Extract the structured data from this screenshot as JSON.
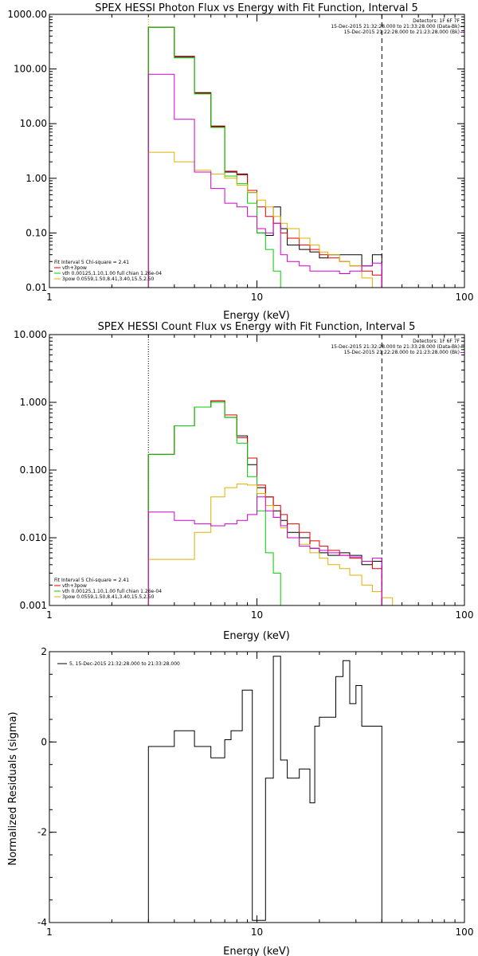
{
  "chart_data": [
    {
      "type": "line",
      "title": "SPEX HESSI Photon Flux vs Energy with Fit Function, Interval 5",
      "xlabel": "Energy (keV)",
      "ylabel": "",
      "xscale": "log",
      "yscale": "log",
      "xlim": [
        1,
        100
      ],
      "ylim": [
        0.01,
        1000
      ],
      "xticks": [
        {
          "v": 1,
          "label": "1"
        },
        {
          "v": 10,
          "label": "10"
        },
        {
          "v": 100,
          "label": "100"
        }
      ],
      "yticks": [
        {
          "v": 0.01,
          "label": "0.01"
        },
        {
          "v": 0.1,
          "label": "0.10"
        },
        {
          "v": 1,
          "label": "1.00"
        },
        {
          "v": 10,
          "label": "10.00"
        },
        {
          "v": 100,
          "label": "100.00"
        },
        {
          "v": 1000,
          "label": "1000.00"
        }
      ],
      "info_lines": [
        "Detectors: 1F 6F 7F",
        "15-Dec-2015 21:32:28.000 to 21:33:28.000 (Data-Bk)",
        "15-Dec-2015 21:22:28.000 to 21:23:28.000 (Bk)"
      ],
      "legend_lines": [
        {
          "text": "Fit Interval 5   Chi-square = 2.41",
          "color": null
        },
        {
          "text": "vth+3pow",
          "color": "#e00000"
        },
        {
          "text": "vth 0.00125,1.10,1.00  full chian 1.26e-04",
          "color": "#00d000"
        },
        {
          "text": "3pow 0.0559,1.50,8.41,3.40,15.5,2.50",
          "color": "#e0b000"
        }
      ],
      "series": [
        {
          "color": "#000000",
          "edges": [
            3,
            3.5,
            4,
            5,
            6,
            7,
            8,
            9,
            10,
            11,
            12,
            13,
            14,
            16,
            18,
            20,
            22,
            25,
            28,
            32,
            36,
            40
          ],
          "values": [
            580,
            580,
            170,
            37,
            9,
            1.3,
            1.2,
            0.55,
            0.1,
            0.09,
            0.3,
            0.12,
            0.06,
            0.05,
            0.045,
            0.035,
            0.04,
            0.04,
            0.04,
            0.025,
            0.04
          ]
        },
        {
          "color": "#e00000",
          "edges": [
            3,
            3.5,
            4,
            5,
            6,
            7,
            8,
            9,
            10,
            11,
            12,
            13,
            14,
            16,
            18,
            20,
            22,
            25,
            28,
            32,
            36,
            40
          ],
          "values": [
            580,
            580,
            165,
            36,
            8.8,
            1.35,
            1.15,
            0.6,
            0.3,
            0.2,
            0.15,
            0.1,
            0.08,
            0.06,
            0.05,
            0.04,
            0.035,
            0.03,
            0.025,
            0.02,
            0.017
          ]
        },
        {
          "color": "#00d000",
          "edges": [
            3,
            3.5,
            4,
            5,
            6,
            7,
            8,
            9,
            10,
            11,
            12,
            13,
            14
          ],
          "values": [
            580,
            580,
            160,
            35,
            8.5,
            1.1,
            0.8,
            0.35,
            0.1,
            0.05,
            0.02,
            0.01
          ]
        },
        {
          "color": "#e0b000",
          "edges": [
            3,
            3.5,
            4,
            5,
            6,
            7,
            8,
            9,
            10,
            11,
            12,
            13,
            14,
            16,
            18,
            20,
            22,
            25,
            28,
            32,
            36,
            40
          ],
          "values": [
            3,
            3,
            2,
            1.4,
            1.2,
            1,
            0.75,
            0.55,
            0.4,
            0.3,
            0.2,
            0.15,
            0.12,
            0.08,
            0.06,
            0.045,
            0.04,
            0.03,
            0.025,
            0.015,
            0.01
          ]
        },
        {
          "color": "#d000d0",
          "edges": [
            3,
            3.5,
            4,
            5,
            6,
            7,
            8,
            9,
            10,
            11,
            12,
            13,
            14,
            16,
            18,
            20,
            22,
            25,
            28,
            32,
            36,
            40
          ],
          "values": [
            80,
            80,
            12,
            1.3,
            0.65,
            0.35,
            0.3,
            0.2,
            0.12,
            0.1,
            0.15,
            0.04,
            0.03,
            0.025,
            0.02,
            0.02,
            0.02,
            0.018,
            0.02,
            0.025,
            0.028
          ]
        }
      ],
      "vlines": [
        {
          "x": 3,
          "style": "dotted",
          "color": "#d0a000"
        },
        {
          "x": 40,
          "style": "dashed",
          "color": "#000000"
        }
      ]
    },
    {
      "type": "line",
      "title": "SPEX HESSI Count Flux vs Energy with Fit Function, Interval 5",
      "xlabel": "Energy (keV)",
      "ylabel": "",
      "xscale": "log",
      "yscale": "log",
      "xlim": [
        1,
        100
      ],
      "ylim": [
        0.001,
        10
      ],
      "xticks": [
        {
          "v": 1,
          "label": "1"
        },
        {
          "v": 10,
          "label": "10"
        },
        {
          "v": 100,
          "label": "100"
        }
      ],
      "yticks": [
        {
          "v": 0.001,
          "label": "0.001"
        },
        {
          "v": 0.01,
          "label": "0.010"
        },
        {
          "v": 0.1,
          "label": "0.100"
        },
        {
          "v": 1,
          "label": "1.000"
        },
        {
          "v": 10,
          "label": "10.000"
        }
      ],
      "info_lines": [
        "Detectors: 1F 6F 7F",
        "15-Dec-2015 21:32:28.000 to 21:33:28.000 (Data-Bk)",
        "15-Dec-2015 21:22:28.000 to 21:23:28.000 (Bk)"
      ],
      "legend_lines": [
        {
          "text": "Fit Interval 5   Chi-square = 2.41",
          "color": null
        },
        {
          "text": "vth+3pow",
          "color": "#e00000"
        },
        {
          "text": "vth 0.00125,1.10,1.00  full chian 1.26e-04",
          "color": "#00d000"
        },
        {
          "text": "3pow 0.0559,1.50,8.41,3.40,15.5,2.50",
          "color": "#e0b000"
        }
      ],
      "series": [
        {
          "color": "#000000",
          "edges": [
            3,
            4,
            5,
            6,
            7,
            8,
            9,
            10,
            11,
            12,
            13,
            14,
            16,
            18,
            20,
            22,
            25,
            28,
            32,
            36,
            40
          ],
          "values": [
            0.17,
            0.45,
            0.85,
            1.05,
            0.6,
            0.32,
            0.12,
            0.055,
            0.04,
            0.025,
            0.018,
            0.012,
            0.01,
            0.007,
            0.006,
            0.0055,
            0.006,
            0.0055,
            0.004,
            0.0045
          ]
        },
        {
          "color": "#e00000",
          "edges": [
            3,
            4,
            5,
            6,
            7,
            8,
            9,
            10,
            11,
            12,
            13,
            14,
            16,
            18,
            20,
            22,
            25,
            28,
            32,
            36,
            40
          ],
          "values": [
            0.17,
            0.45,
            0.85,
            1.05,
            0.65,
            0.3,
            0.15,
            0.06,
            0.04,
            0.03,
            0.022,
            0.016,
            0.012,
            0.009,
            0.0075,
            0.0065,
            0.0055,
            0.005,
            0.0045,
            0.0035
          ]
        },
        {
          "color": "#00d000",
          "edges": [
            3,
            4,
            5,
            6,
            7,
            8,
            9,
            10,
            11,
            12,
            13,
            14
          ],
          "values": [
            0.17,
            0.45,
            0.85,
            1.0,
            0.6,
            0.25,
            0.08,
            0.025,
            0.006,
            0.003,
            0.001
          ]
        },
        {
          "color": "#e0b000",
          "edges": [
            3,
            4,
            5,
            6,
            7,
            8,
            9,
            10,
            11,
            12,
            13,
            14,
            16,
            18,
            20,
            22,
            25,
            28,
            32,
            36,
            40,
            45,
            50
          ],
          "values": [
            0.0048,
            0.0048,
            0.012,
            0.04,
            0.055,
            0.062,
            0.06,
            0.045,
            0.03,
            0.02,
            0.014,
            0.01,
            0.008,
            0.006,
            0.005,
            0.004,
            0.0035,
            0.0028,
            0.002,
            0.0016,
            0.0013,
            0.001
          ]
        },
        {
          "color": "#d000d0",
          "edges": [
            3,
            4,
            5,
            6,
            7,
            8,
            9,
            10,
            11,
            12,
            13,
            14,
            16,
            18,
            20,
            22,
            25,
            28,
            32,
            36,
            40
          ],
          "values": [
            0.024,
            0.018,
            0.016,
            0.015,
            0.016,
            0.018,
            0.022,
            0.04,
            0.025,
            0.02,
            0.015,
            0.01,
            0.0075,
            0.007,
            0.0065,
            0.006,
            0.0055,
            0.0052,
            0.0045,
            0.005
          ]
        }
      ],
      "vlines": [
        {
          "x": 3,
          "style": "dotted",
          "color": "#000000"
        },
        {
          "x": 40,
          "style": "dashed",
          "color": "#000000"
        }
      ]
    },
    {
      "type": "line",
      "title": "",
      "xlabel": "Energy (keV)",
      "ylabel": "Normalized Residuals (sigma)",
      "xscale": "log",
      "yscale": "linear",
      "xlim": [
        1,
        100
      ],
      "ylim": [
        -4,
        2
      ],
      "xticks": [
        {
          "v": 1,
          "label": "1"
        },
        {
          "v": 10,
          "label": "10"
        },
        {
          "v": 100,
          "label": "100"
        }
      ],
      "yticks": [
        {
          "v": -4,
          "label": "-4"
        },
        {
          "v": -2,
          "label": "-2"
        },
        {
          "v": 0,
          "label": "0"
        },
        {
          "v": 2,
          "label": "2"
        }
      ],
      "legend_text": "5, 15-Dec-2015 21:32:28.000 to 21:33:28.000",
      "series": [
        {
          "color": "#000000",
          "edges": [
            3,
            3.5,
            4,
            4.5,
            5,
            5.5,
            6,
            6.5,
            7,
            7.5,
            8,
            8.5,
            9,
            9.5,
            10,
            11,
            12,
            13,
            14,
            15,
            16,
            17,
            18,
            19,
            20,
            22,
            24,
            26,
            28,
            30,
            32,
            34,
            36,
            38,
            40
          ],
          "values": [
            -0.1,
            -0.1,
            0.25,
            0.25,
            -0.1,
            -0.1,
            -0.35,
            -0.35,
            0.05,
            0.25,
            0.25,
            1.15,
            1.15,
            -3.95,
            -3.95,
            -0.8,
            1.9,
            -0.4,
            -0.8,
            -0.8,
            -0.6,
            -0.6,
            -1.35,
            0.35,
            0.55,
            0.55,
            1.45,
            1.8,
            0.85,
            1.25,
            0.35,
            0.35,
            0.35,
            0.35
          ]
        }
      ],
      "vlines": []
    }
  ]
}
